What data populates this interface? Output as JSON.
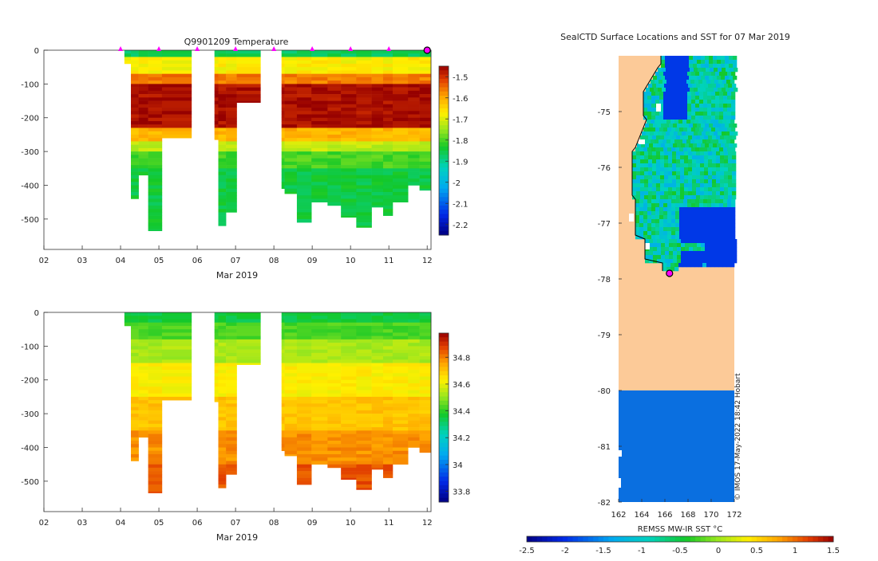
{
  "colors": {
    "land": "#fcca98",
    "ocean_base": "#0a6fe0",
    "marker": "#ff00ff"
  },
  "chart_data": [
    {
      "id": "temp_section",
      "type": "heatmap",
      "title": "Q9901209  Temperature",
      "xlabel": "Mar 2019",
      "ylabel": "",
      "xlim": [
        2,
        12.1
      ],
      "ylim": [
        -590,
        0
      ],
      "xticks": [
        "02",
        "03",
        "04",
        "05",
        "06",
        "07",
        "08",
        "09",
        "10",
        "11",
        "12"
      ],
      "yticks": [
        "0",
        "-100",
        "-200",
        "-300",
        "-400",
        "-500"
      ],
      "colorbar": {
        "range": [
          -2.25,
          -1.45
        ],
        "ticks": [
          "-1.5",
          "-1.6",
          "-1.7",
          "-1.8",
          "-1.9",
          "-2",
          "-2.1",
          "-2.2"
        ]
      },
      "surface_markers_x": [
        4,
        5,
        6,
        7,
        8,
        9,
        10,
        11
      ],
      "current_position_x": 12,
      "profiles": [
        {
          "t0": 4.1,
          "t1": 4.27,
          "depth": 40
        },
        {
          "t0": 4.27,
          "t1": 4.47,
          "depth": 440
        },
        {
          "t0": 4.47,
          "t1": 4.72,
          "depth": 370
        },
        {
          "t0": 4.72,
          "t1": 5.08,
          "depth": 535
        },
        {
          "t0": 5.08,
          "t1": 5.85,
          "depth": 260
        },
        {
          "t0": 6.45,
          "t1": 6.55,
          "depth": 265
        },
        {
          "t0": 6.55,
          "t1": 6.75,
          "depth": 520
        },
        {
          "t0": 6.75,
          "t1": 7.03,
          "depth": 480
        },
        {
          "t0": 7.03,
          "t1": 7.65,
          "depth": 155
        },
        {
          "t0": 8.2,
          "t1": 8.28,
          "depth": 410
        },
        {
          "t0": 8.28,
          "t1": 8.6,
          "depth": 425
        },
        {
          "t0": 8.6,
          "t1": 8.98,
          "depth": 510
        },
        {
          "t0": 8.98,
          "t1": 9.4,
          "depth": 450
        },
        {
          "t0": 9.4,
          "t1": 9.75,
          "depth": 460
        },
        {
          "t0": 9.75,
          "t1": 10.15,
          "depth": 495
        },
        {
          "t0": 10.15,
          "t1": 10.55,
          "depth": 525
        },
        {
          "t0": 10.55,
          "t1": 10.85,
          "depth": 465
        },
        {
          "t0": 10.85,
          "t1": 11.1,
          "depth": 490
        },
        {
          "t0": 11.1,
          "t1": 11.5,
          "depth": 450
        },
        {
          "t0": 11.5,
          "t1": 11.8,
          "depth": 400
        },
        {
          "t0": 11.8,
          "t1": 12.1,
          "depth": 415
        }
      ]
    },
    {
      "id": "sal_section",
      "type": "heatmap",
      "title": "",
      "xlabel": "Mar 2019",
      "ylabel": "",
      "xlim": [
        2,
        12.1
      ],
      "ylim": [
        -590,
        0
      ],
      "xticks": [
        "02",
        "03",
        "04",
        "05",
        "06",
        "07",
        "08",
        "09",
        "10",
        "11",
        "12"
      ],
      "yticks": [
        "0",
        "-100",
        "-200",
        "-300",
        "-400",
        "-500"
      ],
      "colorbar": {
        "range": [
          33.72,
          34.98
        ],
        "ticks": [
          "34.8",
          "34.6",
          "34.4",
          "34.2",
          "34",
          "33.8"
        ]
      },
      "profiles": "same casts as temperature section"
    },
    {
      "id": "sst_map",
      "type": "heatmap",
      "title": "SealCTD Surface Locations and SST for 07 Mar 2019",
      "xlabel": "",
      "ylabel": "",
      "xlim": [
        162,
        172
      ],
      "ylim": [
        -82,
        -74
      ],
      "xticks": [
        "162",
        "164",
        "166",
        "168",
        "170",
        "172"
      ],
      "yticks": [
        "-75",
        "-76",
        "-77",
        "-78",
        "-79",
        "-80",
        "-81",
        "-82"
      ],
      "colorbar": {
        "label": "REMSS MW-IR SST °C",
        "range": [
          -2.5,
          1.5
        ],
        "ticks": [
          "-2.5",
          "-2",
          "-1.5",
          "-1",
          "-0.5",
          "0",
          "0.5",
          "1",
          "1.5"
        ]
      },
      "seal_position": {
        "lon": 166.4,
        "lat": -77.9
      },
      "credit": "© IMOS 17-May-2022 18:42 Hobart"
    }
  ]
}
